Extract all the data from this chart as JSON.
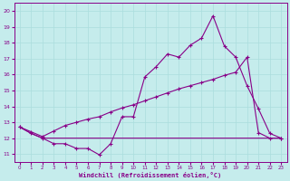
{
  "xlabel": "Windchill (Refroidissement éolien,°C)",
  "background_color": "#c5ecec",
  "grid_color": "#aadddd",
  "line_color": "#880088",
  "xlim": [
    -0.5,
    23.5
  ],
  "ylim": [
    10.5,
    20.5
  ],
  "x_ticks": [
    0,
    1,
    2,
    3,
    4,
    5,
    6,
    7,
    8,
    9,
    10,
    11,
    12,
    13,
    14,
    15,
    16,
    17,
    18,
    19,
    20,
    21,
    22,
    23
  ],
  "y_ticks": [
    11,
    12,
    13,
    14,
    15,
    16,
    17,
    18,
    19,
    20
  ],
  "line_jagged_x": [
    0,
    1,
    2,
    3,
    4,
    5,
    6,
    7,
    8,
    9,
    10,
    11,
    12,
    13,
    14,
    15,
    16,
    17,
    18,
    19,
    20,
    21,
    22,
    23
  ],
  "line_jagged_y": [
    12.7,
    12.3,
    12.0,
    11.65,
    11.65,
    11.35,
    11.35,
    10.95,
    11.65,
    13.35,
    13.35,
    15.85,
    16.5,
    17.3,
    17.1,
    17.85,
    18.3,
    19.7,
    17.8,
    17.1,
    15.3,
    13.85,
    12.3,
    12.0
  ],
  "line_rising_x": [
    0,
    1,
    2,
    3,
    4,
    5,
    6,
    7,
    8,
    9,
    10,
    11,
    12,
    13,
    14,
    15,
    16,
    17,
    18,
    19,
    20,
    21,
    22,
    23
  ],
  "line_rising_y": [
    12.7,
    12.4,
    12.1,
    12.45,
    12.8,
    13.0,
    13.2,
    13.35,
    13.65,
    13.9,
    14.1,
    14.35,
    14.6,
    14.85,
    15.1,
    15.3,
    15.5,
    15.7,
    15.95,
    16.15,
    17.1,
    12.35,
    12.0,
    12.0
  ],
  "line_flat_x": [
    0,
    1,
    2,
    3,
    4,
    5,
    6,
    7,
    8,
    9,
    10,
    11,
    12,
    13,
    14,
    15,
    16,
    17,
    18,
    19,
    20,
    21,
    22,
    23
  ],
  "line_flat_y": [
    12.7,
    12.3,
    12.0,
    12.0,
    12.0,
    12.0,
    12.0,
    12.0,
    12.0,
    12.0,
    12.0,
    12.0,
    12.0,
    12.0,
    12.0,
    12.0,
    12.0,
    12.0,
    12.0,
    12.0,
    12.0,
    12.0,
    12.0,
    12.0
  ]
}
